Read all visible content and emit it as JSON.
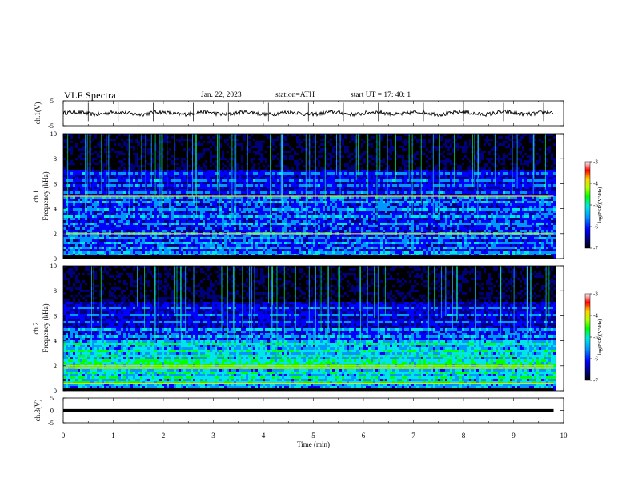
{
  "header": {
    "title": "VLF  Spectra",
    "date": "Jan. 22, 2023",
    "station": "station=ATH",
    "start": "start  UT  =   17: 40: 1"
  },
  "colors": {
    "trace": "#000000",
    "axis": "#000000",
    "colormap": [
      "#000000",
      "#00007a",
      "#0000ff",
      "#0096ff",
      "#00e6e6",
      "#00ff00",
      "#b4ff00",
      "#ffd200",
      "#ff0000",
      "#ffffff"
    ]
  },
  "chart_data": [
    {
      "type": "line",
      "name": "ch1-voltage",
      "ylabel": "ch.1(V)",
      "ylim": [
        -5,
        5
      ],
      "yticks": [
        "5",
        "-5"
      ],
      "xlim": [
        0,
        10
      ],
      "baseline": 0,
      "end_x": 9.8,
      "spikes_x": [
        0.5,
        1.1,
        1.8,
        2.6,
        3.3,
        4.1,
        4.9,
        5.6,
        6.3,
        7.2,
        8.0,
        8.8,
        9.6
      ]
    },
    {
      "type": "heatmap",
      "name": "ch1-spectrogram",
      "ylabel": "ch.1\nFrequency (kHz)",
      "ylim": [
        0,
        10
      ],
      "yticks": [
        "0",
        "2",
        "4",
        "6",
        "8",
        "10"
      ],
      "xlim": [
        0,
        10
      ],
      "end_x": 9.8,
      "colorbar": {
        "label": "log(PSD)(V²/Hz)",
        "ticks": [
          "-3",
          "-4",
          "-5",
          "-6",
          "-7"
        ],
        "range": [
          -7,
          -3
        ]
      },
      "bands_khz": [
        0.2,
        0.5,
        0.9,
        1.3,
        1.8,
        2.1,
        2.9,
        3.4,
        4.1,
        4.6,
        5.0,
        5.4,
        5.9,
        6.4,
        6.9
      ],
      "bright_lines_khz": [
        2.0,
        5.0
      ]
    },
    {
      "type": "heatmap",
      "name": "ch2-spectrogram",
      "ylabel": "ch.2\nFrequency (kHz)",
      "ylim": [
        0,
        10
      ],
      "yticks": [
        "0",
        "2",
        "4",
        "6",
        "8",
        "10"
      ],
      "xlim": [
        0,
        10
      ],
      "end_x": 9.8,
      "colorbar": {
        "label": "log(PSD)(V²/Hz)",
        "ticks": [
          "-3",
          "-4",
          "-5",
          "-6",
          "-7"
        ],
        "range": [
          -7,
          -3
        ]
      },
      "bands_khz": [
        0.3,
        0.7,
        1.1,
        1.6,
        2.0,
        2.4,
        2.9,
        3.3,
        3.9,
        4.4,
        5.0,
        5.6,
        6.2,
        6.8
      ],
      "bright_lines_khz": [
        0.6,
        1.8,
        2.0
      ]
    },
    {
      "type": "line",
      "name": "ch3-voltage",
      "ylabel": "ch.3(V)",
      "ylim": [
        -5,
        5
      ],
      "yticks": [
        "5",
        "0",
        "-5"
      ],
      "xlim": [
        0,
        10
      ],
      "baseline": 0,
      "end_x": 9.8,
      "xlabel": "Time  (min)",
      "xticks": [
        "0",
        "1",
        "2",
        "3",
        "4",
        "5",
        "6",
        "7",
        "8",
        "9",
        "10"
      ]
    }
  ]
}
